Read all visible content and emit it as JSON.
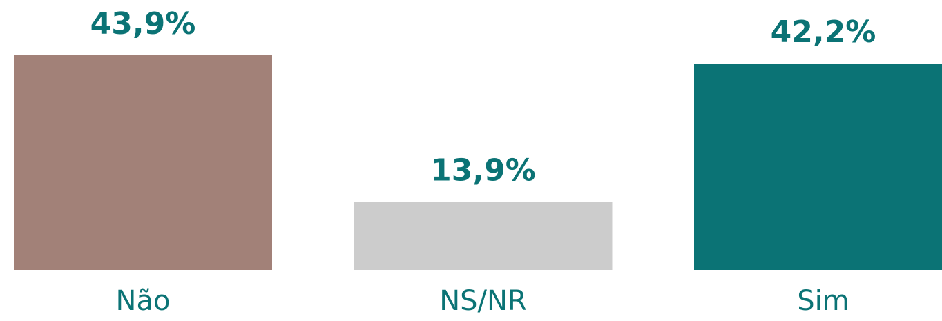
{
  "chart_data": {
    "type": "bar",
    "categories": [
      "Não",
      "NS/NR",
      "Sim"
    ],
    "values": [
      43.9,
      13.9,
      42.2
    ],
    "value_labels": [
      "43,9%",
      "13,9%",
      "42,2%"
    ],
    "colors": [
      "#a28178",
      "#cccccc",
      "#0b7375"
    ],
    "grid": false
  }
}
